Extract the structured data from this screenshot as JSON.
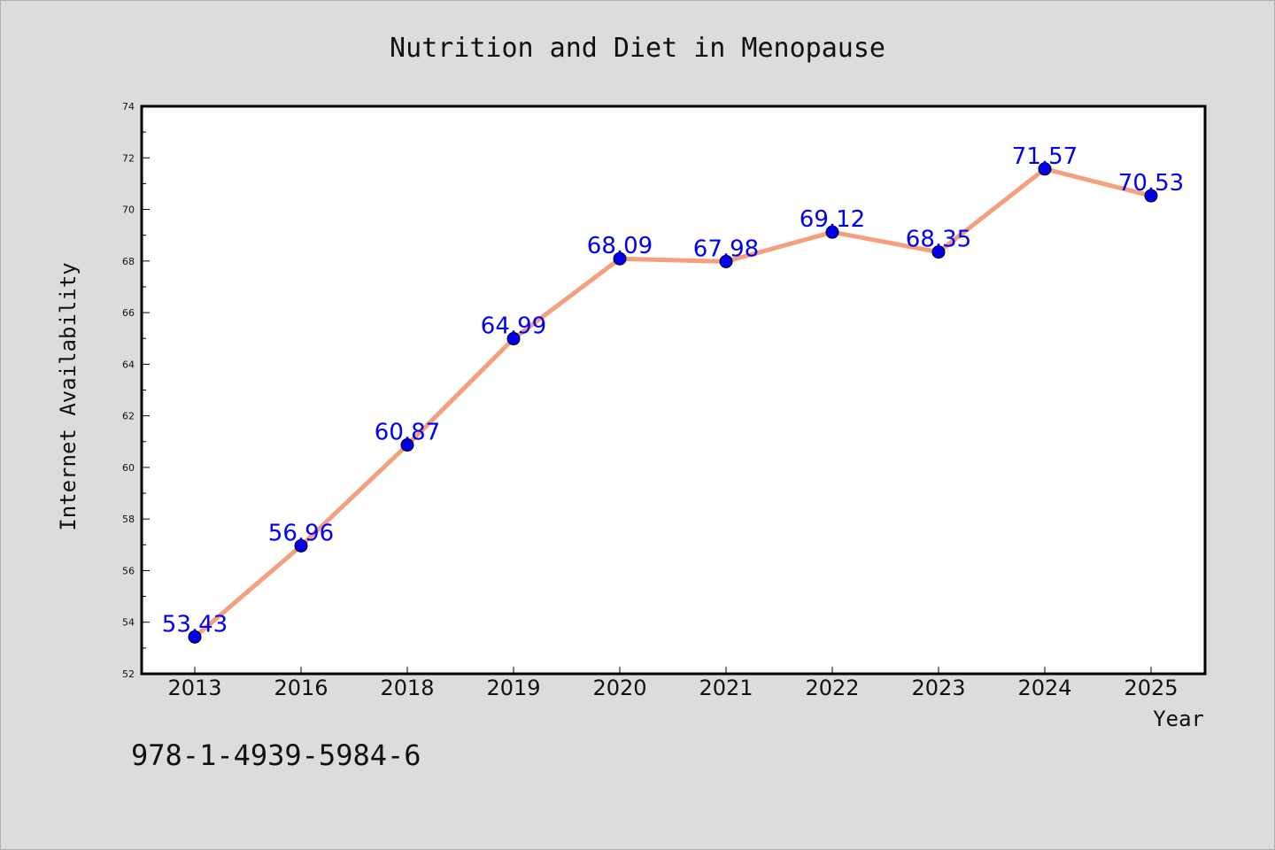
{
  "chart_data": {
    "type": "line",
    "title": "Nutrition and Diet in Menopause",
    "xlabel": "Year",
    "ylabel": "Internet Availability",
    "categories": [
      "2013",
      "2016",
      "2018",
      "2019",
      "2020",
      "2021",
      "2022",
      "2023",
      "2024",
      "2025"
    ],
    "series": [
      {
        "values": [
          53.43,
          56.96,
          60.87,
          64.99,
          68.09,
          67.98,
          69.12,
          68.35,
          71.57,
          70.53
        ],
        "labels": [
          "53.43",
          "56.96",
          "60.87",
          "64.99",
          "68.09",
          "67.98",
          "69.12",
          "68.35",
          "71.57",
          "70.53"
        ],
        "line_color": "#f4a07e",
        "marker_color": "#0000ee"
      }
    ],
    "ylim": [
      52,
      74
    ],
    "yticks": [
      "52",
      "54",
      "56",
      "58",
      "60",
      "62",
      "64",
      "66",
      "68",
      "70",
      "72",
      "74"
    ],
    "grid": false,
    "legend": "none"
  },
  "footer": {
    "isbn": "978-1-4939-5984-6"
  }
}
